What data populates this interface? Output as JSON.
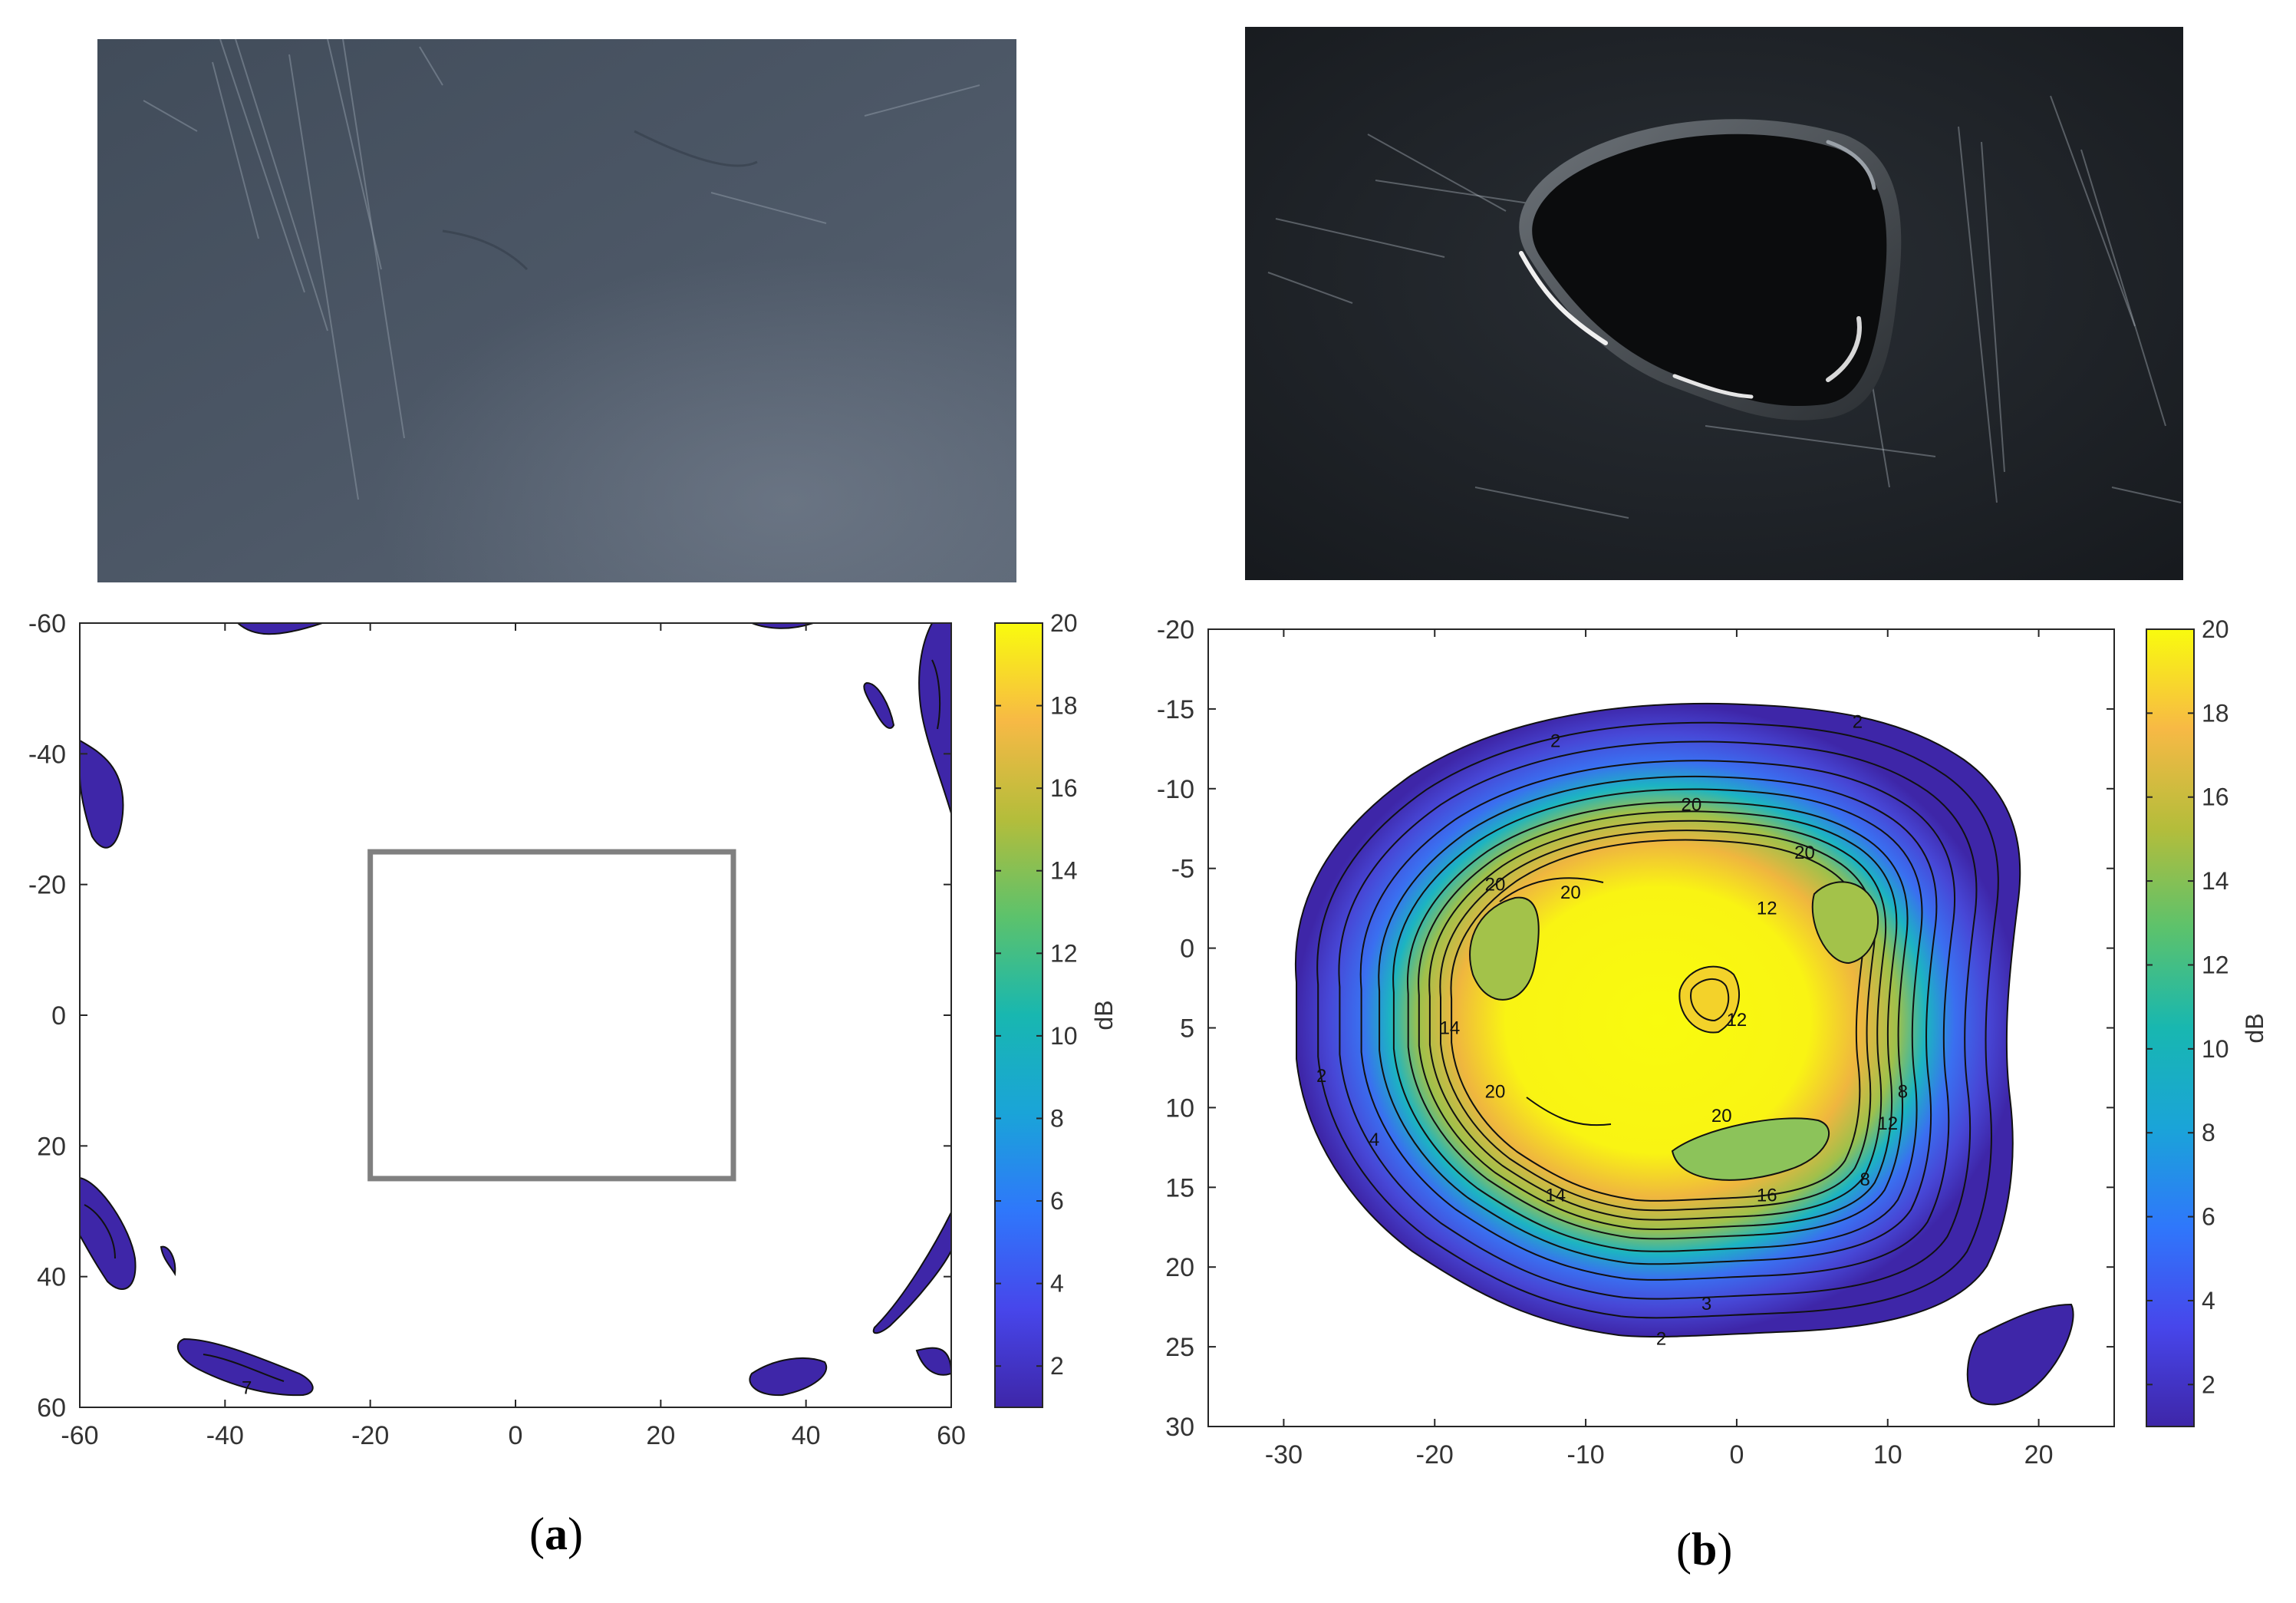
{
  "panels": [
    {
      "caption_open": "(",
      "caption_letter": "a",
      "caption_close": ")",
      "photo": {
        "description_icon": "steel-plate-photo",
        "tone": "#4a5563"
      }
    },
    {
      "caption_open": "(",
      "caption_letter": "b",
      "caption_close": ")",
      "photo": {
        "description_icon": "oil-droplet-on-plate-photo",
        "tone": "#1e2226"
      }
    }
  ],
  "chart_data": [
    {
      "type": "heatmap",
      "xlabel": "",
      "ylabel": "",
      "xlim": [
        -60,
        60
      ],
      "ylim": [
        -60,
        60
      ],
      "y_reversed": true,
      "x_ticks": [
        -60,
        -40,
        -20,
        0,
        20,
        40,
        60
      ],
      "y_ticks": [
        -60,
        -40,
        -20,
        0,
        20,
        40,
        60
      ],
      "colorbar": {
        "label": "dB",
        "range": [
          1,
          20
        ],
        "ticks": [
          2,
          4,
          6,
          8,
          10,
          12,
          14,
          16,
          18,
          20
        ]
      },
      "annotations": [
        {
          "shape": "rectangle",
          "x_range": [
            -20,
            30
          ],
          "y_range": [
            -25,
            25
          ],
          "color": "#808080"
        }
      ],
      "contour_labels": [
        {
          "text": "7",
          "x": -37,
          "y": 57
        }
      ]
    },
    {
      "type": "heatmap",
      "xlabel": "",
      "ylabel": "",
      "xlim": [
        -35,
        25
      ],
      "ylim": [
        -20,
        30
      ],
      "y_reversed": true,
      "x_ticks": [
        -30,
        -20,
        -10,
        0,
        10,
        20
      ],
      "y_ticks": [
        -20,
        -15,
        -10,
        -5,
        0,
        5,
        10,
        15,
        20,
        25,
        30
      ],
      "colorbar": {
        "label": "dB",
        "range": [
          1,
          20
        ],
        "ticks": [
          2,
          4,
          6,
          8,
          10,
          12,
          14,
          16,
          18,
          20
        ]
      },
      "contour_labels": [
        {
          "text": "2",
          "x": -5,
          "y": 24.5
        },
        {
          "text": "2",
          "x": -27.5,
          "y": 8
        },
        {
          "text": "2",
          "x": -12,
          "y": -13
        },
        {
          "text": "2",
          "x": 8,
          "y": -14.2
        },
        {
          "text": "3",
          "x": -2,
          "y": 22.3
        },
        {
          "text": "4",
          "x": -24,
          "y": 12
        },
        {
          "text": "14",
          "x": -19,
          "y": 5
        },
        {
          "text": "20",
          "x": -16,
          "y": -4
        },
        {
          "text": "20",
          "x": -11,
          "y": -3.5
        },
        {
          "text": "20",
          "x": -3,
          "y": -9
        },
        {
          "text": "20",
          "x": 4.5,
          "y": -6
        },
        {
          "text": "20",
          "x": -16,
          "y": 9
        },
        {
          "text": "20",
          "x": -1,
          "y": 10.5
        },
        {
          "text": "12",
          "x": 0,
          "y": 4.5
        },
        {
          "text": "12",
          "x": 2,
          "y": -2.5
        },
        {
          "text": "14",
          "x": -12,
          "y": 15.5
        },
        {
          "text": "16",
          "x": 2,
          "y": 15.5
        },
        {
          "text": "12",
          "x": 10,
          "y": 11
        },
        {
          "text": "8",
          "x": 11,
          "y": 9
        },
        {
          "text": "8",
          "x": 8.5,
          "y": 14.5
        }
      ]
    }
  ]
}
